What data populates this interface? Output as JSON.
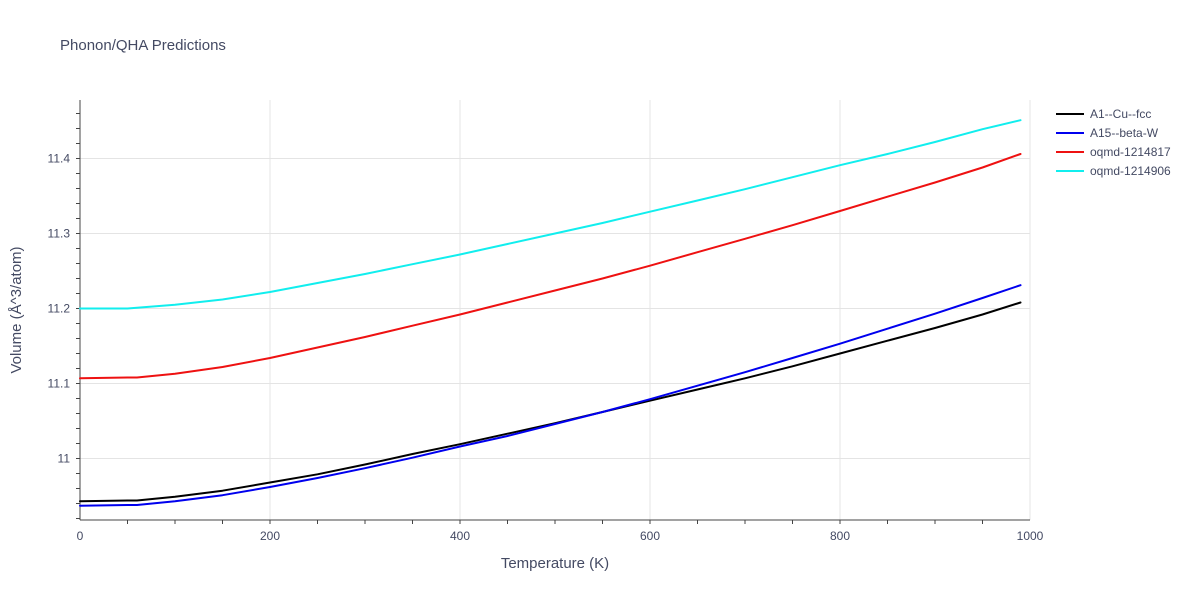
{
  "chart_data": {
    "type": "line",
    "title": "Phonon/QHA Predictions",
    "xlabel": "Temperature (K)",
    "ylabel": "Volume (Å^3/atom)",
    "xlim": [
      0,
      1000
    ],
    "ylim": [
      10.918,
      11.478
    ],
    "x_ticks": [
      0,
      200,
      400,
      600,
      800,
      1000
    ],
    "x_tick_labels": [
      "0",
      "200",
      "400",
      "600",
      "800",
      "1000"
    ],
    "y_ticks": [
      11.0,
      11.1,
      11.2,
      11.3,
      11.4
    ],
    "y_tick_labels": [
      "11",
      "11.1",
      "11.2",
      "11.3",
      "11.4"
    ],
    "grid": true,
    "legend_position": "top-right",
    "series": [
      {
        "name": "A1--Cu--fcc",
        "color": "#000000",
        "x": [
          0,
          50,
          60,
          100,
          150,
          200,
          250,
          300,
          350,
          400,
          450,
          500,
          550,
          600,
          650,
          700,
          750,
          800,
          850,
          900,
          950,
          990
        ],
        "y": [
          10.943,
          10.944,
          10.944,
          10.949,
          10.957,
          10.968,
          10.979,
          10.992,
          11.006,
          11.019,
          11.033,
          11.047,
          11.062,
          11.077,
          11.092,
          11.107,
          11.123,
          11.14,
          11.157,
          11.174,
          11.192,
          11.208
        ]
      },
      {
        "name": "A15--beta-W",
        "color": "#0000ee",
        "x": [
          0,
          50,
          60,
          100,
          150,
          200,
          250,
          300,
          350,
          400,
          450,
          500,
          550,
          600,
          650,
          700,
          750,
          800,
          850,
          900,
          950,
          990
        ],
        "y": [
          10.937,
          10.938,
          10.938,
          10.943,
          10.951,
          10.962,
          10.974,
          10.987,
          11.001,
          11.016,
          11.03,
          11.046,
          11.062,
          11.079,
          11.097,
          11.115,
          11.134,
          11.153,
          11.173,
          11.193,
          11.214,
          11.231
        ]
      },
      {
        "name": "oqmd-1214817",
        "color": "#ee1111",
        "x": [
          0,
          50,
          60,
          100,
          150,
          200,
          250,
          300,
          350,
          400,
          450,
          500,
          550,
          600,
          650,
          700,
          750,
          800,
          850,
          900,
          950,
          990
        ],
        "y": [
          11.107,
          11.108,
          11.108,
          11.113,
          11.122,
          11.134,
          11.148,
          11.162,
          11.177,
          11.192,
          11.208,
          11.224,
          11.24,
          11.257,
          11.275,
          11.293,
          11.311,
          11.33,
          11.349,
          11.368,
          11.388,
          11.406
        ]
      },
      {
        "name": "oqmd-1214906",
        "color": "#11eeee",
        "x": [
          0,
          50,
          60,
          100,
          150,
          200,
          250,
          300,
          350,
          400,
          450,
          500,
          550,
          600,
          650,
          700,
          750,
          800,
          850,
          900,
          950,
          990
        ],
        "y": [
          11.2,
          11.2,
          11.201,
          11.205,
          11.212,
          11.222,
          11.234,
          11.246,
          11.259,
          11.272,
          11.286,
          11.3,
          11.314,
          11.329,
          11.344,
          11.359,
          11.375,
          11.391,
          11.406,
          11.422,
          11.439,
          11.451
        ]
      }
    ]
  }
}
